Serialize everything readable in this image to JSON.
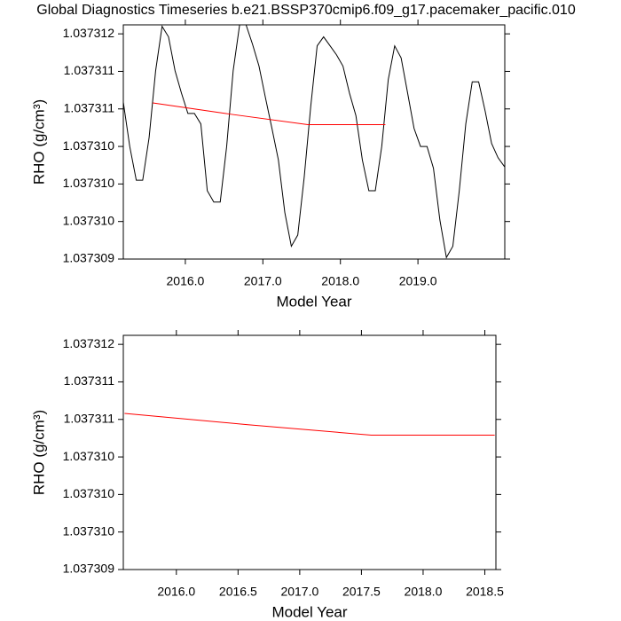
{
  "chart_data": [
    {
      "type": "line",
      "title": "Global Diagnostics Timeseries b.e21.BSSP370cmip6.f09_g17.pacemaker_pacific.010",
      "xlabel": "Model Year",
      "ylabel": "RHO (g/cm³)",
      "xlim": [
        2015.2,
        2020.12
      ],
      "ylim": [
        1.037309,
        1.03731212
      ],
      "xticks": [
        {
          "value": 2016,
          "label": "2016.0"
        },
        {
          "value": 2017,
          "label": "2017.0"
        },
        {
          "value": 2018,
          "label": "2018.0"
        },
        {
          "value": 2019,
          "label": "2019.0"
        }
      ],
      "yticks": [
        {
          "value": 1.037309,
          "label": "1.037309"
        },
        {
          "value": 1.0373095,
          "label": "1.037310"
        },
        {
          "value": 1.03731,
          "label": "1.037310"
        },
        {
          "value": 1.0373105,
          "label": "1.037310"
        },
        {
          "value": 1.037311,
          "label": "1.037311"
        },
        {
          "value": 1.0373115,
          "label": "1.037311"
        },
        {
          "value": 1.037312,
          "label": "1.037312"
        }
      ],
      "series": [
        {
          "color": "#000000",
          "x": [
            2015.2,
            2015.283,
            2015.367,
            2015.45,
            2015.533,
            2015.617,
            2015.7,
            2015.783,
            2015.867,
            2015.95,
            2016.033,
            2016.117,
            2016.2,
            2016.283,
            2016.367,
            2016.45,
            2016.533,
            2016.617,
            2016.7,
            2016.783,
            2016.867,
            2016.95,
            2017.033,
            2017.117,
            2017.2,
            2017.283,
            2017.367,
            2017.45,
            2017.533,
            2017.617,
            2017.7,
            2017.783,
            2017.867,
            2017.95,
            2018.033,
            2018.117,
            2018.2,
            2018.283,
            2018.367,
            2018.45,
            2018.533,
            2018.617,
            2018.7,
            2018.783,
            2018.867,
            2018.95,
            2019.033,
            2019.117,
            2019.2,
            2019.283,
            2019.367,
            2019.45,
            2019.533,
            2019.617,
            2019.7,
            2019.783,
            2019.867,
            2019.95,
            2020.033,
            2020.117
          ],
          "values": [
            1.03731109,
            1.0373105,
            1.03731005,
            1.03731005,
            1.03731062,
            1.03731151,
            1.0373121,
            1.03731196,
            1.03731151,
            1.03731121,
            1.03731094,
            1.03731094,
            1.0373108,
            1.03730991,
            1.03730976,
            1.03730976,
            1.0373105,
            1.03731151,
            1.03731212,
            1.03731212,
            1.03731186,
            1.03731157,
            1.03731115,
            1.03731074,
            1.03731032,
            1.03730962,
            1.03730917,
            1.03730932,
            1.03731009,
            1.03731103,
            1.03731184,
            1.03731196,
            1.03731184,
            1.03731172,
            1.03731157,
            1.03731121,
            1.03731091,
            1.03731032,
            1.03730991,
            1.03730991,
            1.0373105,
            1.03731139,
            1.03731184,
            1.03731168,
            1.03731121,
            1.03731074,
            1.0373105,
            1.0373105,
            1.03731021,
            1.03730952,
            1.03730902,
            1.03730917,
            1.03730991,
            1.0373108,
            1.03731136,
            1.03731136,
            1.03731097,
            1.03731054,
            1.03731035,
            1.03731023
          ]
        },
        {
          "color": "#ff0000",
          "x": [
            2015.58,
            2016.58,
            2017.58,
            2018.58
          ],
          "values": [
            1.03731108,
            1.03731093,
            1.03731079,
            1.03731079
          ]
        }
      ]
    },
    {
      "type": "line",
      "xlabel": "Model Year",
      "ylabel": "RHO (g/cm³)",
      "xlim": [
        2015.57,
        2018.59
      ],
      "ylim": [
        1.037309,
        1.03731212
      ],
      "xticks": [
        {
          "value": 2016,
          "label": "2016.0"
        },
        {
          "value": 2016.5,
          "label": "2016.5"
        },
        {
          "value": 2017,
          "label": "2017.0"
        },
        {
          "value": 2017.5,
          "label": "2017.5"
        },
        {
          "value": 2018,
          "label": "2018.0"
        },
        {
          "value": 2018.5,
          "label": "2018.5"
        }
      ],
      "yticks": [
        {
          "value": 1.037309,
          "label": "1.037309"
        },
        {
          "value": 1.0373095,
          "label": "1.037310"
        },
        {
          "value": 1.03731,
          "label": "1.037310"
        },
        {
          "value": 1.0373105,
          "label": "1.037310"
        },
        {
          "value": 1.037311,
          "label": "1.037311"
        },
        {
          "value": 1.0373115,
          "label": "1.037311"
        },
        {
          "value": 1.037312,
          "label": "1.037312"
        }
      ],
      "series": [
        {
          "color": "#ff0000",
          "x": [
            2015.58,
            2016.58,
            2017.58,
            2018.58
          ],
          "values": [
            1.03731108,
            1.03731093,
            1.03731079,
            1.03731079
          ]
        }
      ]
    }
  ]
}
